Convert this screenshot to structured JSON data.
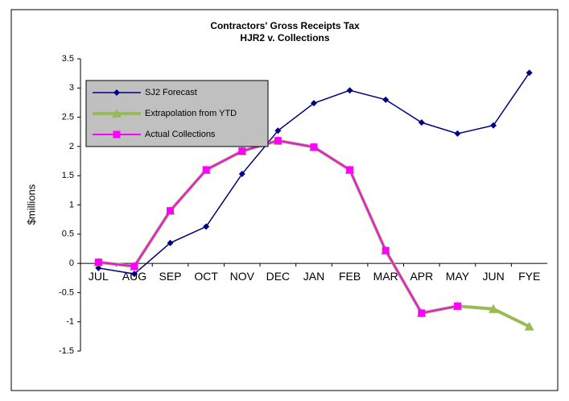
{
  "chart_data": {
    "type": "line",
    "title": "Contractors' Gross Receipts Tax",
    "subtitle": "HJR2 v. Collections",
    "y_label": "$millions",
    "categories": [
      "JUL",
      "AUG",
      "SEP",
      "OCT",
      "NOV",
      "DEC",
      "JAN",
      "FEB",
      "MAR",
      "APR",
      "MAY",
      "JUN",
      "FYE"
    ],
    "series": [
      {
        "name": "SJ2 Forecast",
        "color": "#000080",
        "marker": "diamond",
        "values": [
          -0.08,
          -0.18,
          0.35,
          0.63,
          1.53,
          2.27,
          2.74,
          2.96,
          2.8,
          2.41,
          2.22,
          2.36,
          3.26
        ]
      },
      {
        "name": "Extrapolation from YTD",
        "color": "#99bb55",
        "marker": "triangle",
        "values": [
          0.02,
          -0.05,
          0.9,
          1.6,
          1.92,
          2.1,
          1.99,
          1.6,
          0.22,
          -0.85,
          -0.73,
          -0.78,
          -1.08
        ]
      },
      {
        "name": "Actual Collections",
        "color": "#ff00ff",
        "marker": "square",
        "values": [
          0.02,
          -0.05,
          0.9,
          1.6,
          1.92,
          2.1,
          1.99,
          1.6,
          0.22,
          -0.85,
          -0.73,
          null,
          null
        ]
      }
    ],
    "ylim": [
      -1.5,
      3.5
    ],
    "yticks": [
      {
        "value": -1.5,
        "label": "-1.5"
      },
      -1,
      {
        "value": -0.5,
        "label": "-0.5"
      },
      0,
      0.5,
      1,
      1.5,
      2,
      2.5,
      3,
      3.5
    ],
    "grid": false,
    "legend": "top-left"
  }
}
